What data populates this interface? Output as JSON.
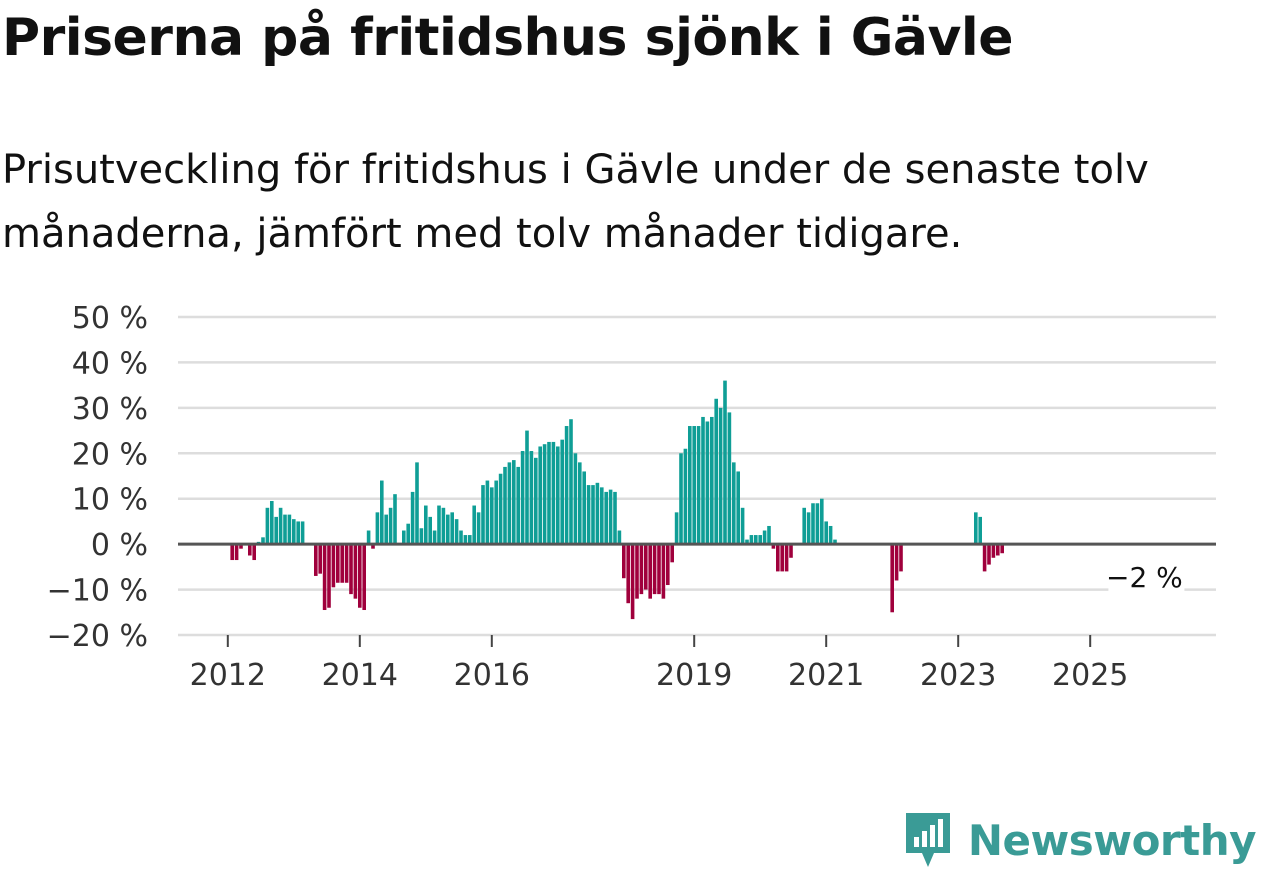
{
  "title": "Priserna på fritidshus sjönk i Gävle",
  "subtitle": "Prisutveckling för fritidshus i Gävle under de senaste tolv månaderna, jämfört med tolv månader tidigare.",
  "brand": "Newsworthy",
  "colors": {
    "positive": "#0f9e96",
    "negative": "#a0003c",
    "grid": "#dddddd",
    "zero": "#555555",
    "brand": "#3a9b96"
  },
  "chart_data": {
    "type": "bar",
    "ylim": [
      -20,
      50
    ],
    "yticks": [
      -20,
      -10,
      0,
      10,
      20,
      30,
      40,
      50
    ],
    "ytick_labels": [
      "−20 %",
      "−10 %",
      "0 %",
      "10 %",
      "20 %",
      "30 %",
      "40 %",
      "50 %"
    ],
    "xticks": [
      "2012",
      "2014",
      "2016",
      "2019",
      "2021",
      "2023",
      "2025"
    ],
    "xtick_index": [
      10,
      40,
      70,
      116,
      146,
      176,
      206
    ],
    "annotation": {
      "text": "−2 %",
      "index": 221,
      "value": -2
    },
    "values": [
      0,
      0,
      0,
      0,
      0,
      0,
      0,
      0,
      0,
      0,
      0,
      -3.5,
      -3.5,
      -1,
      0,
      -2.5,
      -3.5,
      0.5,
      1.5,
      8,
      9.5,
      6,
      8,
      6.5,
      6.5,
      5.5,
      5,
      5,
      0,
      0,
      -7,
      -6.5,
      -14.5,
      -14,
      -9.5,
      -8.5,
      -8.5,
      -8.5,
      -11,
      -12,
      -14,
      -14.5,
      3,
      -1,
      7,
      14,
      6.5,
      8,
      11,
      0,
      3,
      4.5,
      11.5,
      18,
      3.5,
      8.5,
      6,
      3,
      8.5,
      8,
      6.5,
      7,
      5.5,
      3,
      2,
      2,
      8.5,
      7,
      13,
      14,
      12.5,
      14,
      15.5,
      17,
      18,
      18.5,
      17,
      20.5,
      25,
      20.5,
      19,
      21.5,
      22,
      22.5,
      22.5,
      21.5,
      23,
      26,
      27.5,
      20,
      18,
      16,
      13,
      13,
      13.5,
      12.5,
      11.5,
      12,
      11.5,
      3,
      -7.5,
      -13,
      -16.5,
      -12,
      -11,
      -10,
      -12,
      -11,
      -11,
      -12,
      -9,
      -4,
      7,
      20,
      21,
      26,
      26,
      26,
      28,
      27,
      28,
      32,
      30,
      36,
      29,
      18,
      16,
      8,
      1,
      2,
      2,
      2,
      3,
      4,
      -1,
      -6,
      -6,
      -6,
      -3,
      0,
      0,
      8,
      7,
      9,
      9,
      10,
      5,
      4,
      1,
      0,
      0,
      0,
      0,
      0,
      0,
      0,
      0,
      0,
      0,
      0,
      0,
      -15,
      -8,
      -6,
      0,
      0,
      0,
      0,
      0,
      0,
      0,
      0,
      0,
      0,
      0,
      0,
      0,
      0,
      0,
      0,
      7,
      6,
      -6,
      -4.5,
      -3,
      -2.5,
      -2
    ]
  }
}
